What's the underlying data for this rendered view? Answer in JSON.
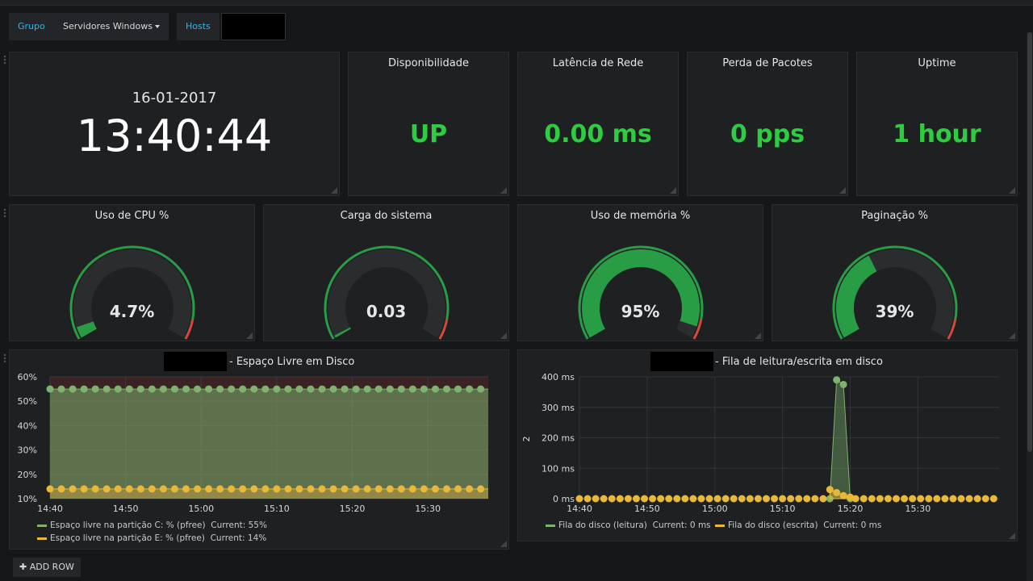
{
  "variables": {
    "group_label": "Grupo",
    "group_value": "Servidores Windows",
    "hosts_label": "Hosts"
  },
  "clock": {
    "date": "16-01-2017",
    "time": "13:40:44"
  },
  "stats": [
    {
      "title": "Disponibilidade",
      "value": "UP"
    },
    {
      "title": "Latência de Rede",
      "value": "0.00 ms"
    },
    {
      "title": "Perda de Pacotes",
      "value": "0 pps"
    },
    {
      "title": "Uptime",
      "value": "1 hour"
    }
  ],
  "gauges": [
    {
      "title": "Uso de CPU %",
      "value": "4.7%",
      "fraction": 0.047
    },
    {
      "title": "Carga do sistema",
      "value": "0.03",
      "fraction": 0.01
    },
    {
      "title": "Uso de memória %",
      "value": "95%",
      "fraction": 0.95
    },
    {
      "title": "Paginação %",
      "value": "39%",
      "fraction": 0.39
    }
  ],
  "colors": {
    "ok": "#299c46",
    "warn": "#d44a3a",
    "green_text": "#2ecc40",
    "series_green": "#7eb26d",
    "series_yellow": "#eab839"
  },
  "chart_data": [
    {
      "type": "line",
      "title": "- Espaço Livre em Disco",
      "x_ticks": [
        "14:40",
        "14:50",
        "15:00",
        "15:10",
        "15:20",
        "15:30"
      ],
      "y_ticks": [
        "10%",
        "20%",
        "30%",
        "40%",
        "50%",
        "60%"
      ],
      "ylim": [
        10,
        60
      ],
      "x_range": [
        "14:40",
        "15:38"
      ],
      "series": [
        {
          "name": "Espaço livre na partição C: % (pfree)",
          "current": "Current: 55%",
          "value": 55
        },
        {
          "name": "Espaço livre na partição E: % (pfree)",
          "current": "Current: 14%",
          "value": 14
        }
      ]
    },
    {
      "type": "line",
      "title": "- Fila de leitura/escrita em disco",
      "ylabel": "2",
      "x_ticks": [
        "14:40",
        "14:50",
        "15:00",
        "15:10",
        "15:20",
        "15:30"
      ],
      "y_ticks": [
        "0 ms",
        "100 ms",
        "200 ms",
        "300 ms",
        "400 ms"
      ],
      "ylim": [
        0,
        400
      ],
      "x_range": [
        "14:40",
        "15:42"
      ],
      "series": [
        {
          "name": "Fila do disco (leitura)",
          "current": "Current: 0 ms",
          "points": [
            [
              "15:17",
              0
            ],
            [
              "15:18",
              390
            ],
            [
              "15:19",
              375
            ],
            [
              "15:20",
              0
            ]
          ]
        },
        {
          "name": "Fila do disco (escrita)",
          "current": "Current: 0 ms",
          "points": [
            [
              "15:17",
              30
            ],
            [
              "15:18",
              20
            ],
            [
              "15:19",
              10
            ],
            [
              "15:20",
              5
            ]
          ]
        }
      ]
    }
  ],
  "add_row": "ADD ROW"
}
